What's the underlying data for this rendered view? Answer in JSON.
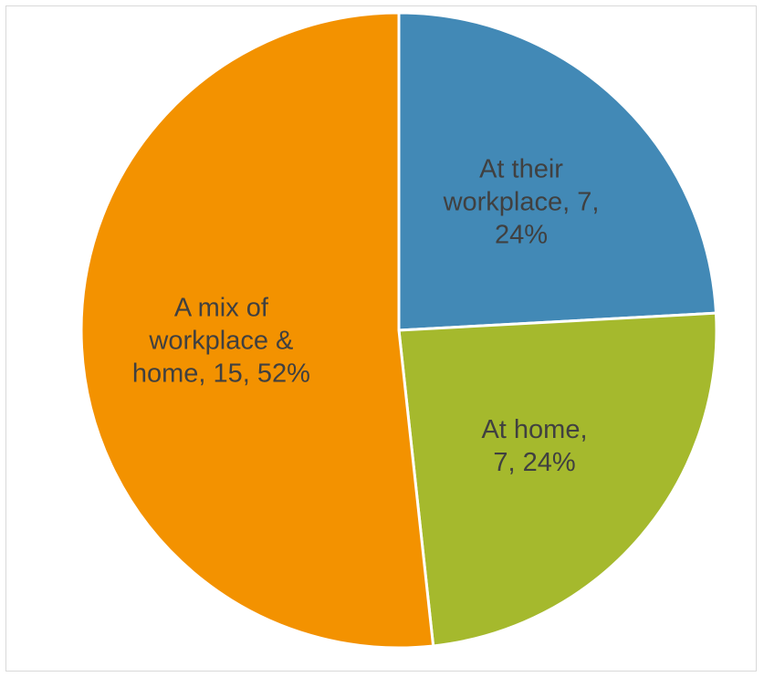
{
  "chart_data": {
    "type": "pie",
    "title": "",
    "start_angle_deg": 0,
    "direction": "clockwise",
    "slices": [
      {
        "label": "At their workplace",
        "value": 7,
        "percent": "24%",
        "color": "#4289b6",
        "data_label_lines": [
          "At their",
          "workplace, 7,",
          "24%"
        ]
      },
      {
        "label": "At home",
        "value": 7,
        "percent": "24%",
        "color": "#a5b92d",
        "data_label_lines": [
          "At home,",
          "7, 24%"
        ]
      },
      {
        "label": "A mix of workplace & home",
        "value": 15,
        "percent": "52%",
        "color": "#f39200",
        "data_label_lines": [
          "A mix of",
          "workplace &",
          "home, 15, 52%"
        ]
      }
    ]
  }
}
